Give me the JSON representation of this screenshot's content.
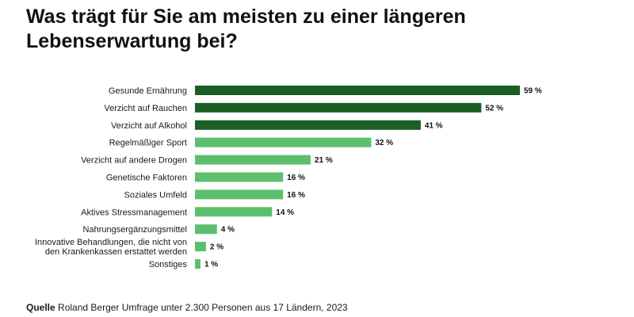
{
  "chart_data": {
    "type": "bar",
    "orientation": "horizontal",
    "title": "Was trägt für Sie am meisten zu einer längeren Lebenserwartung bei?",
    "categories": [
      "Gesunde Ernährung",
      "Verzicht auf Rauchen",
      "Verzicht auf Alkohol",
      "Regelmäßiger Sport",
      "Verzicht auf andere Drogen",
      "Genetische Faktoren",
      "Soziales Umfeld",
      "Aktives Stressmanagement",
      "Nahrungsergänzungsmittel",
      "Innovative Behandlungen, die nicht von den Krankenkassen erstattet werden",
      "Sonstiges"
    ],
    "category_lines": [
      [
        "Gesunde Ernährung"
      ],
      [
        "Verzicht auf Rauchen"
      ],
      [
        "Verzicht auf Alkohol"
      ],
      [
        "Regelmäßiger Sport"
      ],
      [
        "Verzicht auf andere Drogen"
      ],
      [
        "Genetische Faktoren"
      ],
      [
        "Soziales Umfeld"
      ],
      [
        "Aktives Stressmanagement"
      ],
      [
        "Nahrungsergänzungsmittel"
      ],
      [
        "Innovative Behandlungen, die nicht von",
        "den Krankenkassen erstattet werden"
      ],
      [
        "Sonstiges"
      ]
    ],
    "values": [
      59,
      52,
      41,
      32,
      21,
      16,
      16,
      14,
      4,
      2,
      1
    ],
    "value_labels": [
      "59 %",
      "52 %",
      "41 %",
      "32 %",
      "21 %",
      "16 %",
      "16 %",
      "14 %",
      "4 %",
      "2 %",
      "1 %"
    ],
    "unit": "%",
    "highlight_top_n": 3,
    "colors": {
      "highlight": "#1b5e26",
      "default": "#5cbf6f"
    },
    "xlim": [
      0,
      59
    ],
    "xlabel": "",
    "ylabel": ""
  },
  "source": {
    "label": "Quelle",
    "text": "Roland Berger Umfrage unter 2.300 Personen aus 17 Ländern, 2023"
  }
}
